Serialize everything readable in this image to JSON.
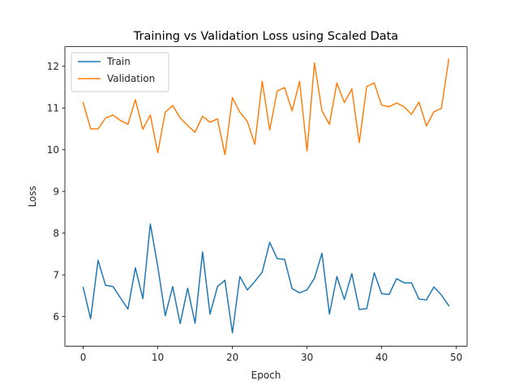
{
  "chart_data": {
    "type": "line",
    "title": "Training vs Validation Loss using Scaled Data",
    "xlabel": "Epoch",
    "ylabel": "Loss",
    "xlim": [
      -2.45,
      51.45
    ],
    "ylim": [
      5.29,
      12.47
    ],
    "xticks": [
      0,
      10,
      20,
      30,
      40,
      50
    ],
    "yticks": [
      6,
      7,
      8,
      9,
      10,
      11,
      12
    ],
    "grid": false,
    "legend_position": "top-left",
    "series": [
      {
        "name": "Train",
        "color": "#1f77b4",
        "x": [
          0,
          1,
          2,
          3,
          4,
          5,
          6,
          7,
          8,
          9,
          10,
          11,
          12,
          13,
          14,
          15,
          16,
          17,
          18,
          19,
          20,
          21,
          22,
          23,
          24,
          25,
          26,
          27,
          28,
          29,
          30,
          31,
          32,
          33,
          34,
          35,
          36,
          37,
          38,
          39,
          40,
          41,
          42,
          43,
          44,
          45,
          46,
          47,
          48,
          49
        ],
        "values": [
          6.7,
          5.95,
          7.35,
          6.75,
          6.72,
          6.45,
          6.18,
          7.17,
          6.43,
          8.22,
          7.2,
          6.02,
          6.72,
          5.83,
          6.68,
          5.84,
          7.55,
          6.06,
          6.72,
          6.87,
          5.61,
          6.96,
          6.64,
          6.84,
          7.07,
          7.78,
          7.39,
          7.37,
          6.67,
          6.57,
          6.64,
          6.92,
          7.52,
          6.06,
          6.96,
          6.41,
          7.03,
          6.17,
          6.19,
          7.05,
          6.55,
          6.53,
          6.91,
          6.81,
          6.81,
          6.42,
          6.4,
          6.71,
          6.52,
          6.26
        ]
      },
      {
        "name": "Validation",
        "color": "#ff7f0e",
        "x": [
          0,
          1,
          2,
          3,
          4,
          5,
          6,
          7,
          8,
          9,
          10,
          11,
          12,
          13,
          14,
          15,
          16,
          17,
          18,
          19,
          20,
          21,
          22,
          23,
          24,
          25,
          26,
          27,
          28,
          29,
          30,
          31,
          32,
          33,
          34,
          35,
          36,
          37,
          38,
          39,
          40,
          41,
          42,
          43,
          44,
          45,
          46,
          47,
          48,
          49
        ],
        "values": [
          11.13,
          10.5,
          10.5,
          10.76,
          10.83,
          10.7,
          10.61,
          11.2,
          10.49,
          10.83,
          9.93,
          10.9,
          11.06,
          10.76,
          10.58,
          10.42,
          10.8,
          10.66,
          10.74,
          9.88,
          11.25,
          10.9,
          10.68,
          10.13,
          11.64,
          10.47,
          11.41,
          11.49,
          10.93,
          11.64,
          9.97,
          12.08,
          10.93,
          10.61,
          11.6,
          11.13,
          11.46,
          10.17,
          11.52,
          11.6,
          11.07,
          11.03,
          11.12,
          11.03,
          10.85,
          11.14,
          10.57,
          10.91,
          10.99,
          12.17
        ]
      }
    ]
  }
}
